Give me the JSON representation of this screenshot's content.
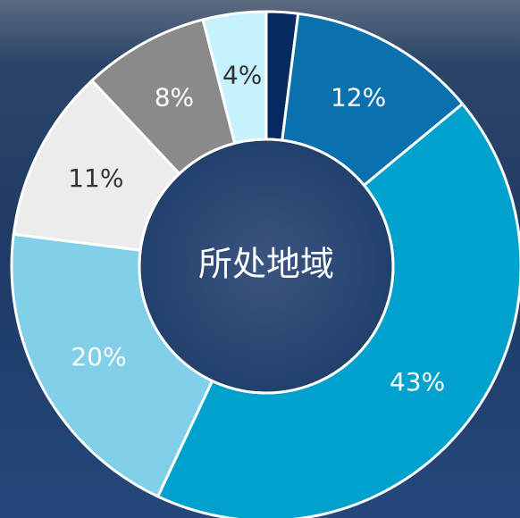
{
  "chart_data": {
    "type": "donut",
    "title": "所处地域",
    "values": [
      2,
      12,
      43,
      20,
      11,
      8,
      4
    ],
    "value_labels": [
      null,
      "12%",
      "43%",
      "20%",
      "11%",
      "8%",
      "4%"
    ],
    "colors": [
      "#062a60",
      "#0a70ae",
      "#00a1cd",
      "#82cfe9",
      "#ececec",
      "#8a8a8a",
      "#c6f1ff"
    ],
    "label_colors": [
      "#ffffff",
      "#ffffff",
      "#ffffff",
      "#ffffff",
      "#333333",
      "#ffffff",
      "#333333"
    ]
  }
}
